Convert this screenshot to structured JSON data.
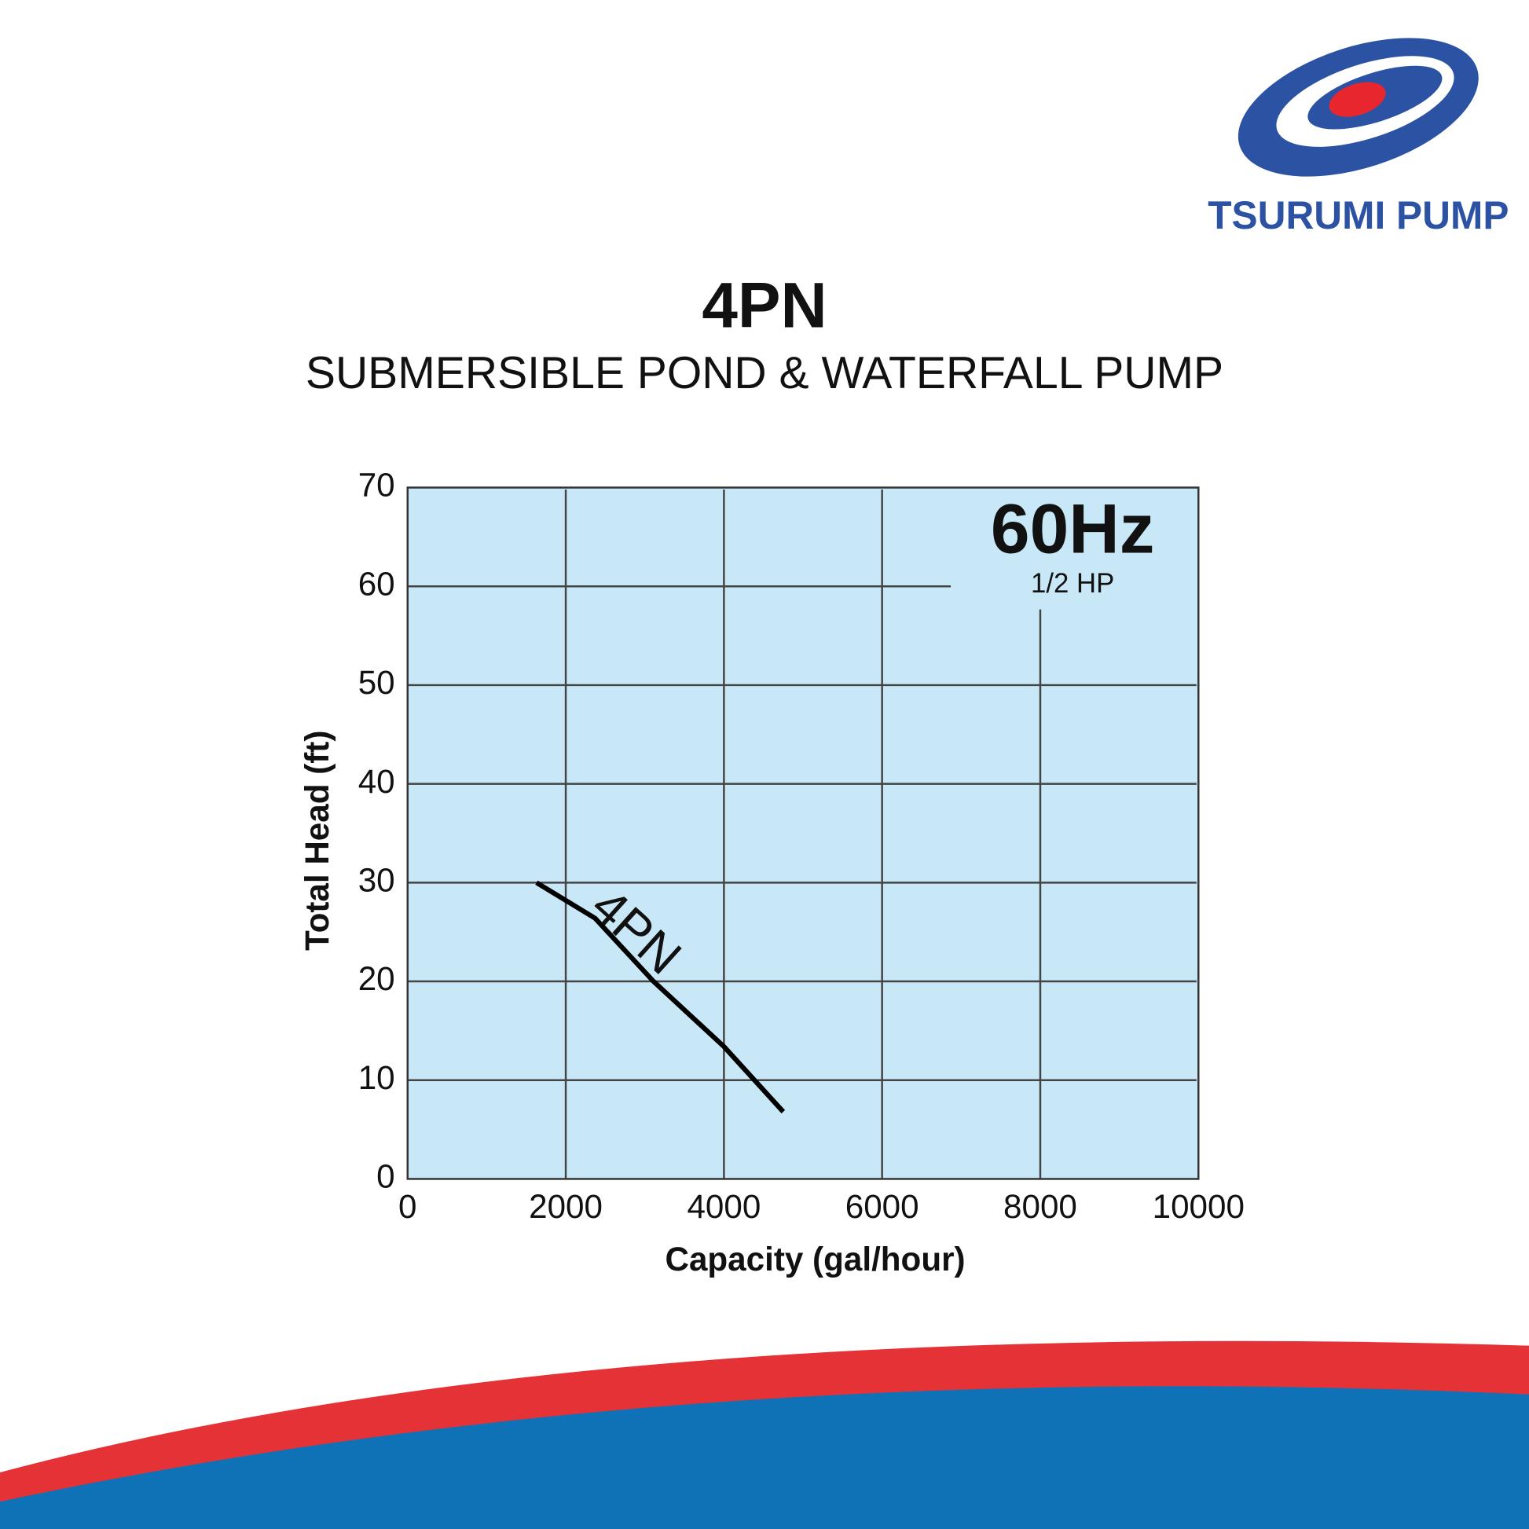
{
  "brand": "TSURUMI PUMP",
  "chart_data": {
    "type": "line",
    "title": "4PN",
    "subtitle": "SUBMERSIBLE POND & WATERFALL PUMP",
    "x_label": "Capacity (gal/hour)",
    "y_label": "Total Head (ft)",
    "annotations": [
      "60Hz",
      "1/2 HP"
    ],
    "series": [
      {
        "name": "4PN",
        "color": "#000000",
        "x": [
          1630,
          2370,
          3110,
          4000,
          4750
        ],
        "values": [
          30,
          26.4,
          20,
          13.4,
          6.8
        ]
      }
    ],
    "xlim": [
      0,
      10000
    ],
    "ylim": [
      0,
      70
    ],
    "xticks": [
      0,
      2000,
      4000,
      6000,
      8000,
      10000
    ],
    "yticks": [
      0,
      10,
      20,
      30,
      40,
      50,
      60,
      70
    ],
    "grid": true,
    "background": "#c9e8f7"
  }
}
